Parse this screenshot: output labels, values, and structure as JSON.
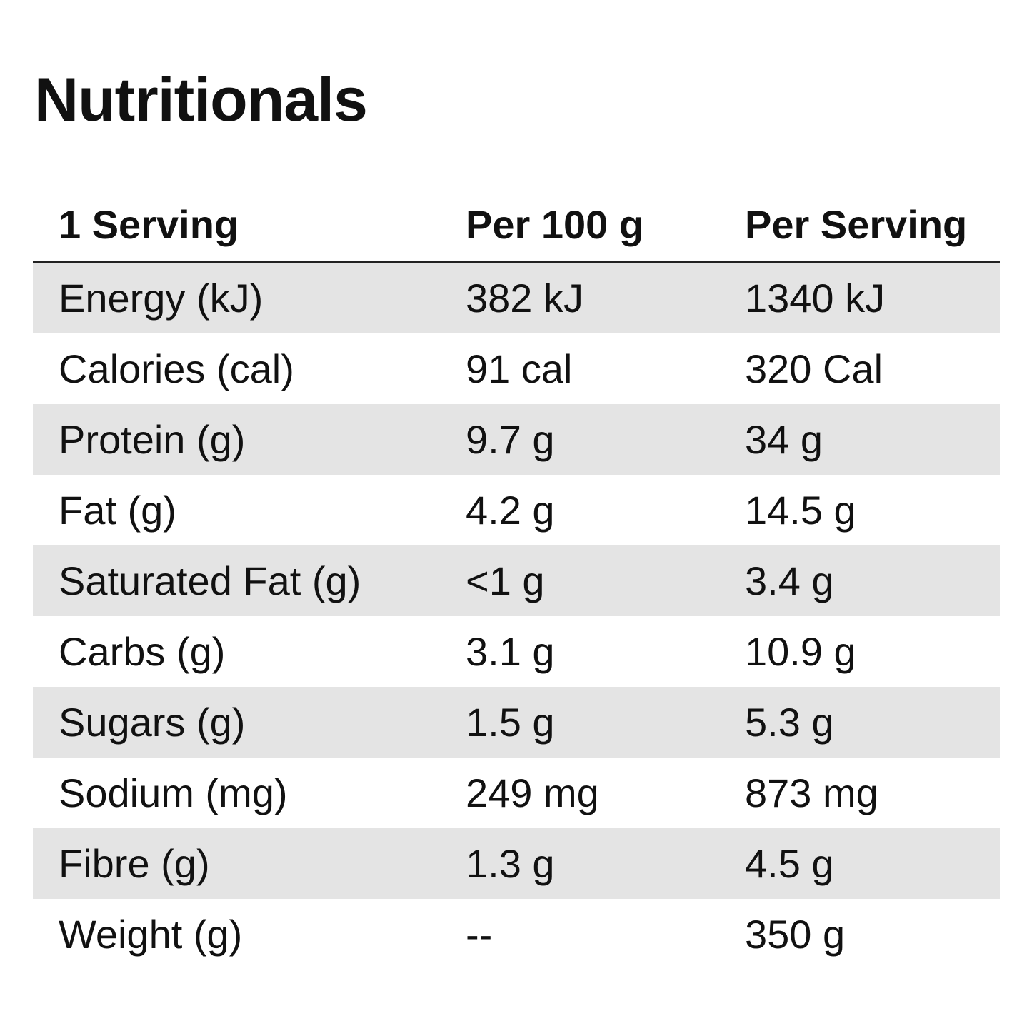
{
  "title": "Nutritionals",
  "table": {
    "headers": [
      "1 Serving",
      "Per 100 g",
      "Per Serving"
    ],
    "rows": [
      [
        "Energy (kJ)",
        "382 kJ",
        "1340 kJ"
      ],
      [
        "Calories (cal)",
        "91 cal",
        "320 Cal"
      ],
      [
        "Protein (g)",
        "9.7 g",
        "34 g"
      ],
      [
        "Fat (g)",
        "4.2 g",
        "14.5 g"
      ],
      [
        "Saturated Fat (g)",
        "<1 g",
        "3.4 g"
      ],
      [
        "Carbs (g)",
        "3.1 g",
        "10.9 g"
      ],
      [
        "Sugars (g)",
        "1.5 g",
        "5.3 g"
      ],
      [
        "Sodium (mg)",
        "249 mg",
        "873 mg"
      ],
      [
        "Fibre (g)",
        "1.3 g",
        "4.5 g"
      ],
      [
        "Weight (g)",
        "--",
        "350 g"
      ]
    ]
  }
}
